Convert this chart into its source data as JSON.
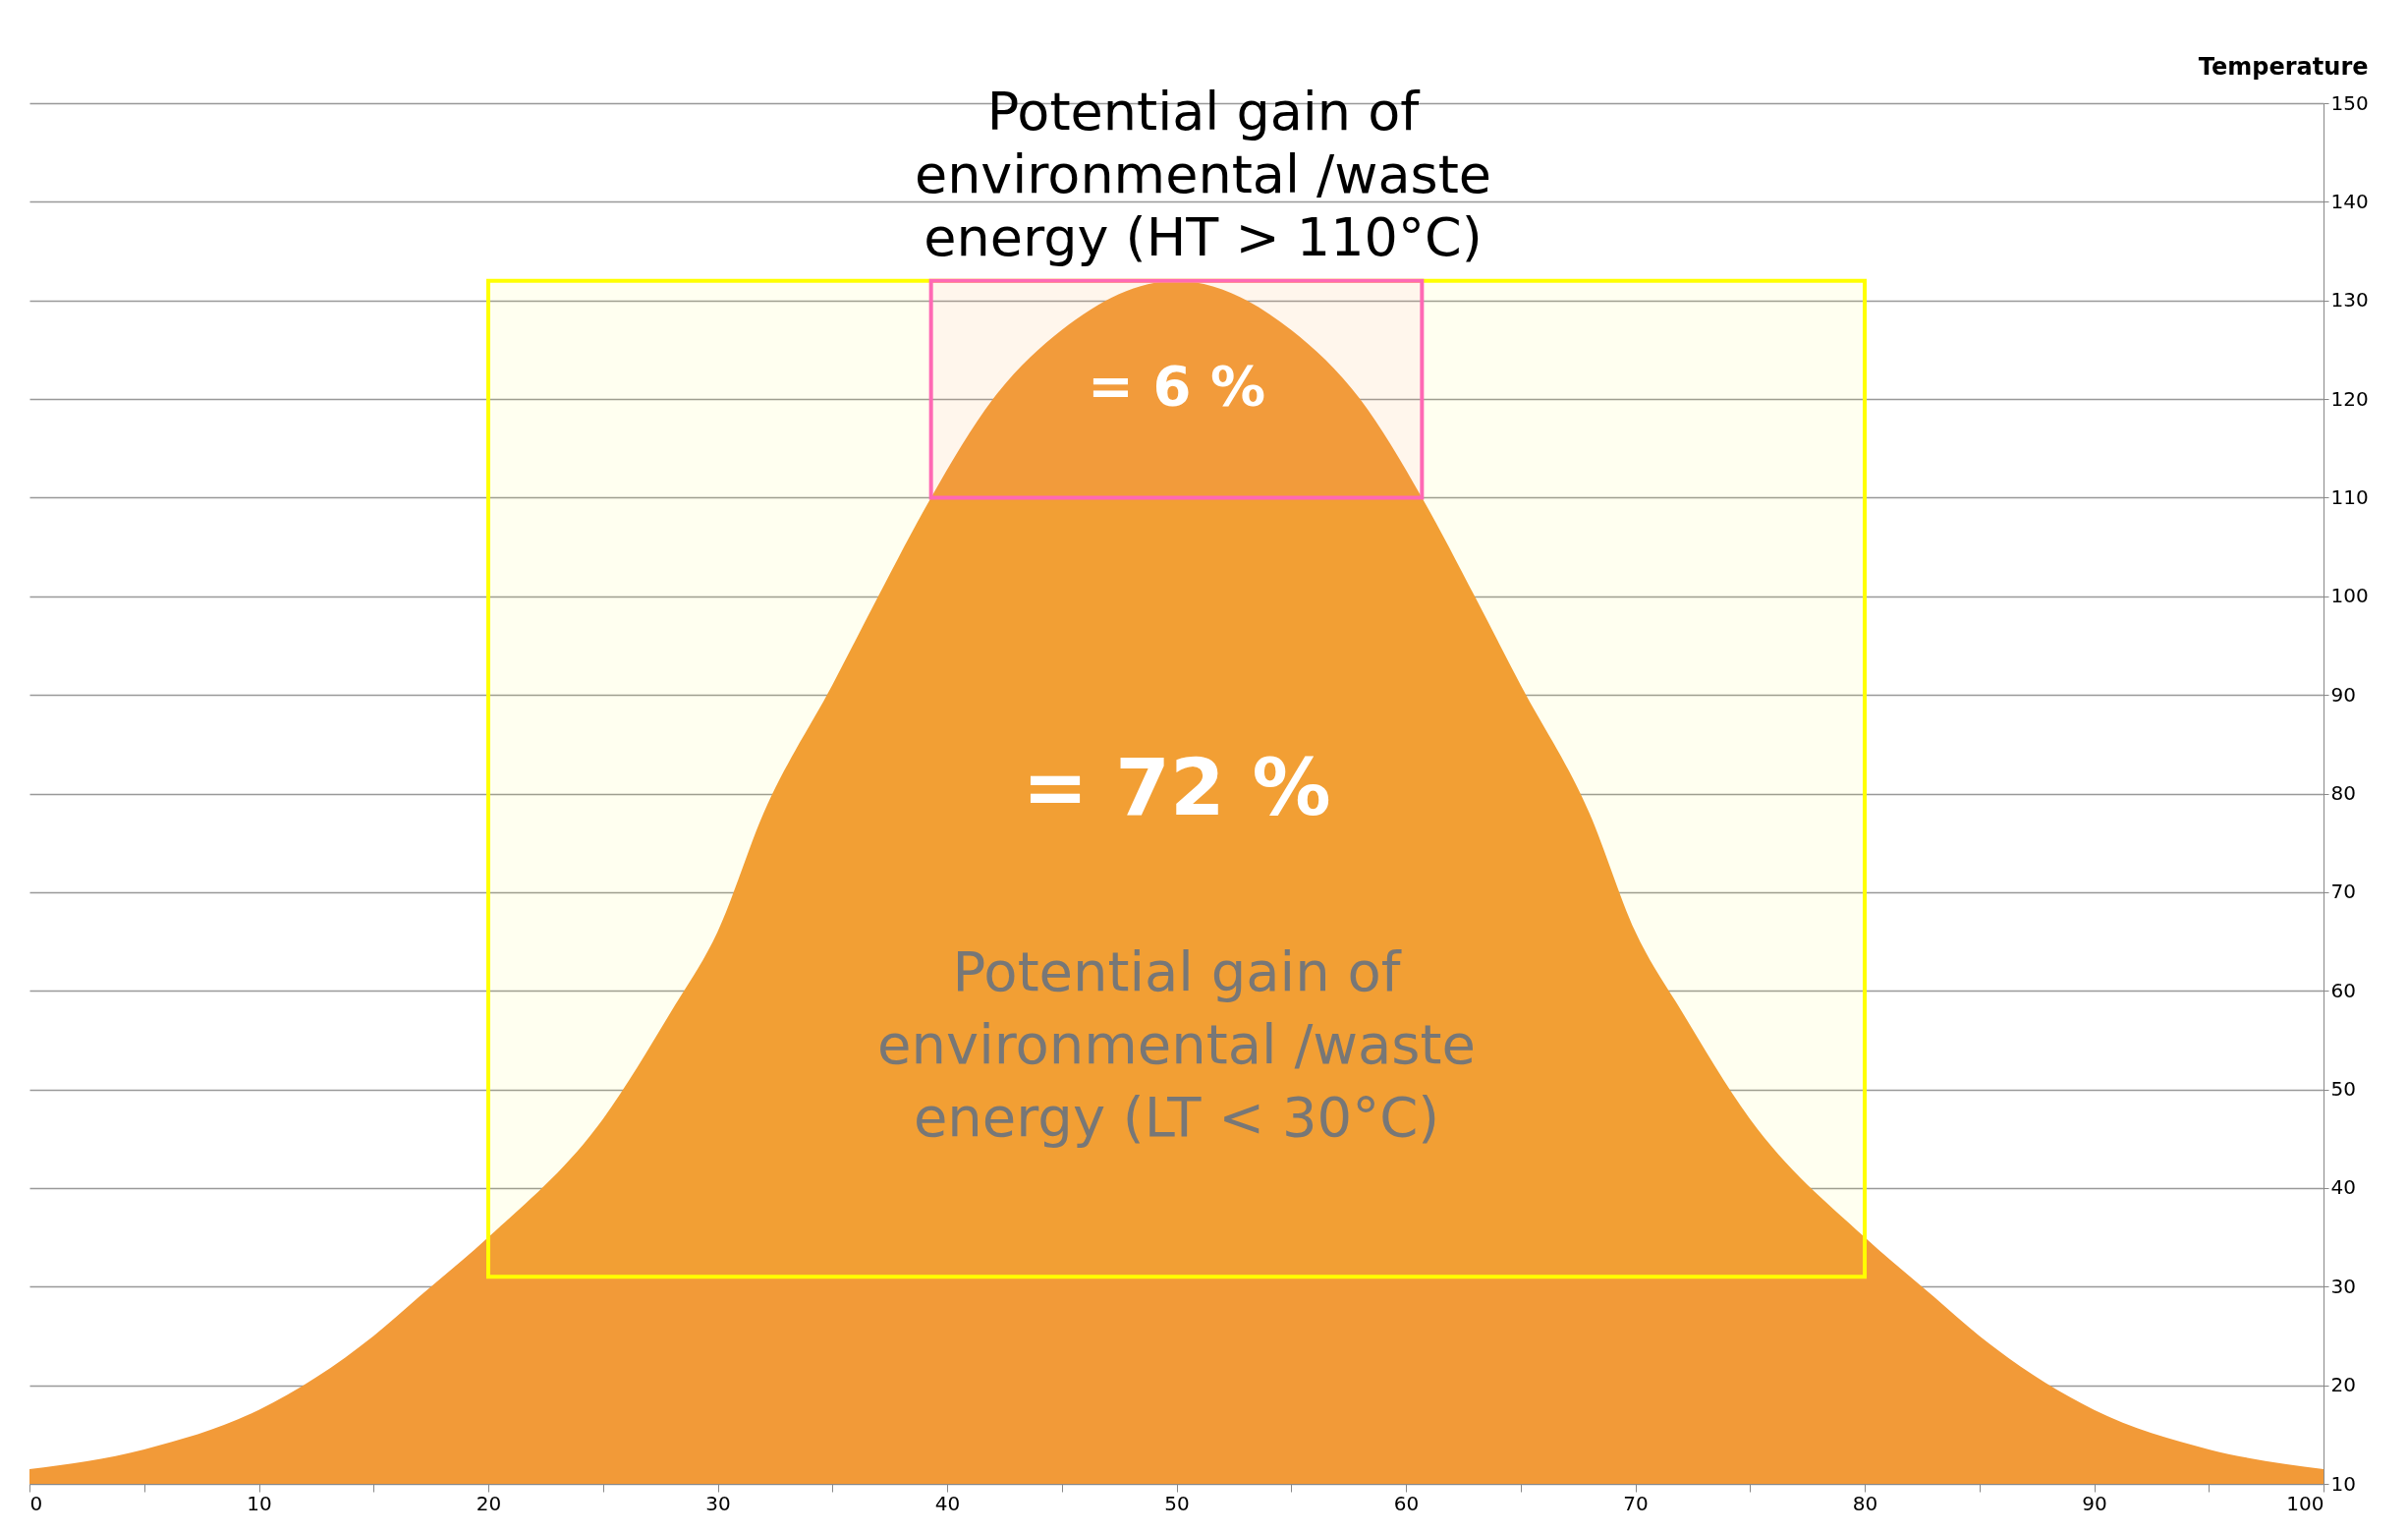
{
  "chart_data": {
    "type": "area",
    "title": "Potential gain of environmental /waste energy (HT > 110°C)",
    "ylabel": "Temperature",
    "x": [
      0,
      5,
      10,
      15,
      17,
      20,
      25,
      28,
      30,
      32,
      35,
      37,
      39.3,
      42,
      45,
      50,
      55,
      58,
      60.7,
      63,
      65,
      68,
      70,
      72,
      75,
      80,
      83,
      85,
      90,
      95,
      100
    ],
    "series": [
      {
        "color": "#f29a38",
        "values": [
          11.5,
          13.5,
          17.5,
          25,
          29,
          35,
          47,
          58,
          66,
          78,
          91,
          100,
          110,
          120,
          127,
          132,
          127,
          120,
          110,
          100,
          91,
          78,
          66,
          58,
          47,
          35,
          29,
          25,
          17.5,
          13.5,
          11.5
        ]
      }
    ],
    "xlim": [
      0,
      100
    ],
    "xticks": [
      0,
      {
        "value": 5,
        "label": null
      },
      10,
      {
        "value": 15,
        "label": null
      },
      20,
      {
        "value": 25,
        "label": null
      },
      30,
      {
        "value": 35,
        "label": null
      },
      40,
      {
        "value": 45,
        "label": null
      },
      50,
      {
        "value": 55,
        "label": null
      },
      60,
      {
        "value": 65,
        "label": null
      },
      70,
      {
        "value": 75,
        "label": null
      },
      80,
      {
        "value": 85,
        "label": null
      },
      90,
      {
        "value": 95,
        "label": null
      },
      100
    ],
    "ylim": [
      10,
      150
    ],
    "yticks": [
      10,
      20,
      30,
      40,
      50,
      60,
      70,
      80,
      90,
      100,
      110,
      120,
      130,
      140,
      150
    ],
    "grid": "y",
    "bands": [
      {
        "axis": "y",
        "from": 31,
        "to": 132,
        "color": "#ffff00"
      },
      {
        "axis": "y",
        "from": 110,
        "to": 132,
        "color": "#ff69b4"
      }
    ],
    "annotations": [
      "= 6 %",
      "=  72 %",
      "Potential gain of environmental /waste energy (LT < 30°C)"
    ]
  }
}
